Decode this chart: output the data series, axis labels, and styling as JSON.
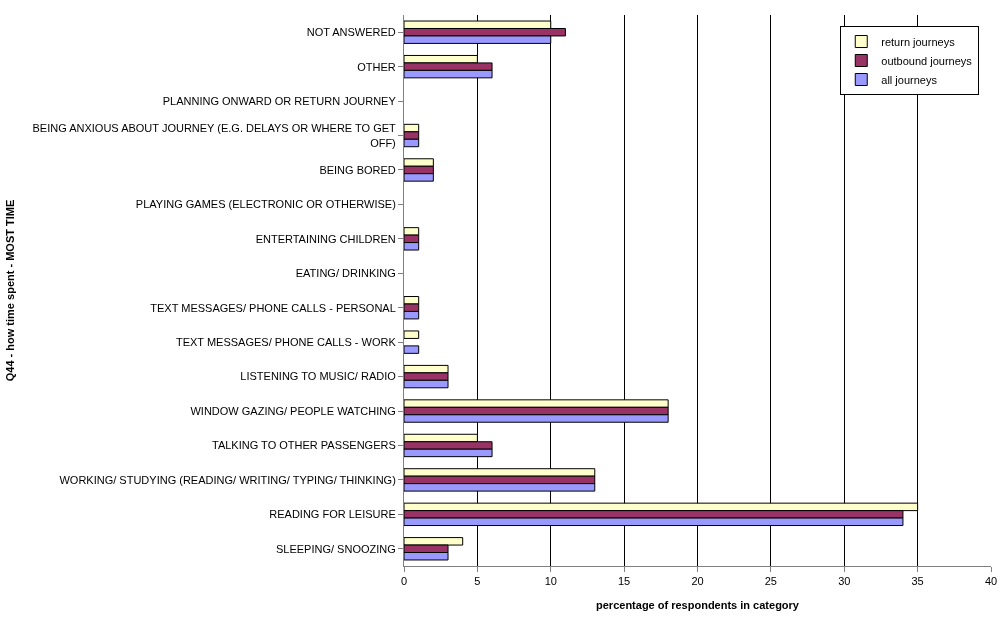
{
  "chart_data": {
    "type": "bar",
    "orientation": "horizontal",
    "xlabel": "percentage of respondents in category",
    "ylabel": "Q44 - how time spent - MOST TIME",
    "categories": [
      "NOT ANSWERED",
      "OTHER",
      "PLANNING ONWARD OR RETURN JOURNEY",
      "BEING ANXIOUS ABOUT JOURNEY (E.G. DELAYS OR WHERE TO GET OFF)",
      "BEING BORED",
      "PLAYING GAMES (ELECTRONIC OR OTHERWISE)",
      "ENTERTAINING CHILDREN",
      "EATING/ DRINKING",
      "TEXT MESSAGES/ PHONE CALLS - PERSONAL",
      "TEXT MESSAGES/ PHONE CALLS - WORK",
      "LISTENING TO MUSIC/ RADIO",
      "WINDOW GAZING/ PEOPLE WATCHING",
      "TALKING TO OTHER PASSENGERS",
      "WORKING/ STUDYING (READING/ WRITING/ TYPING/ THINKING)",
      "READING FOR LEISURE",
      "SLEEPING/ SNOOZING"
    ],
    "series": [
      {
        "name": "return journeys",
        "color": "#ffffcc",
        "values": [
          10,
          5,
          0,
          1,
          2,
          0,
          1,
          0,
          1,
          1,
          3,
          18,
          5,
          13,
          35,
          4
        ]
      },
      {
        "name": "outbound journeys",
        "color": "#993366",
        "values": [
          11,
          6,
          0,
          1,
          2,
          0,
          1,
          0,
          1,
          0,
          3,
          18,
          6,
          13,
          34,
          3
        ]
      },
      {
        "name": "all journeys",
        "color": "#9999ff",
        "values": [
          10,
          6,
          0,
          1,
          2,
          0,
          1,
          0,
          1,
          1,
          3,
          18,
          6,
          13,
          34,
          3
        ]
      }
    ],
    "xlim": [
      0,
      40
    ],
    "xticks": [
      0,
      5,
      10,
      15,
      20,
      25,
      30,
      35,
      40
    ],
    "grid": "x",
    "legend": "top right"
  }
}
